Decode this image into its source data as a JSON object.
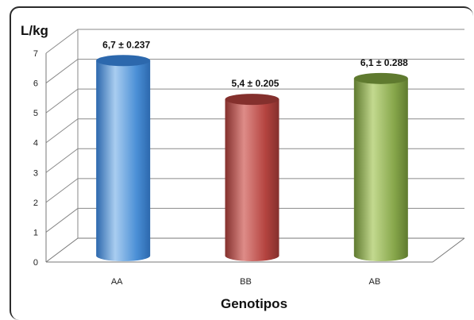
{
  "chart_data": {
    "type": "bar",
    "ylabel": "L/kg",
    "xlabel": "Genotipos",
    "ylim": [
      0,
      7
    ],
    "yticks": [
      "0",
      "1",
      "2",
      "3",
      "4",
      "5",
      "6",
      "7"
    ],
    "grid": true,
    "categories": [
      "AA",
      "BB",
      "AB"
    ],
    "values": [
      6.7,
      5.4,
      6.1
    ],
    "data_labels": [
      "6,7 ± 0.237",
      "5,4 ± 0.205",
      "6,1 ± 0.288"
    ],
    "colors": [
      "#4a8fd6",
      "#b4433f",
      "#86a64a"
    ],
    "colors_dark": [
      "#2c68ad",
      "#84302d",
      "#5f7a2f"
    ],
    "colors_light": [
      "#a9cdf0",
      "#de8c88",
      "#c3d98f"
    ]
  }
}
